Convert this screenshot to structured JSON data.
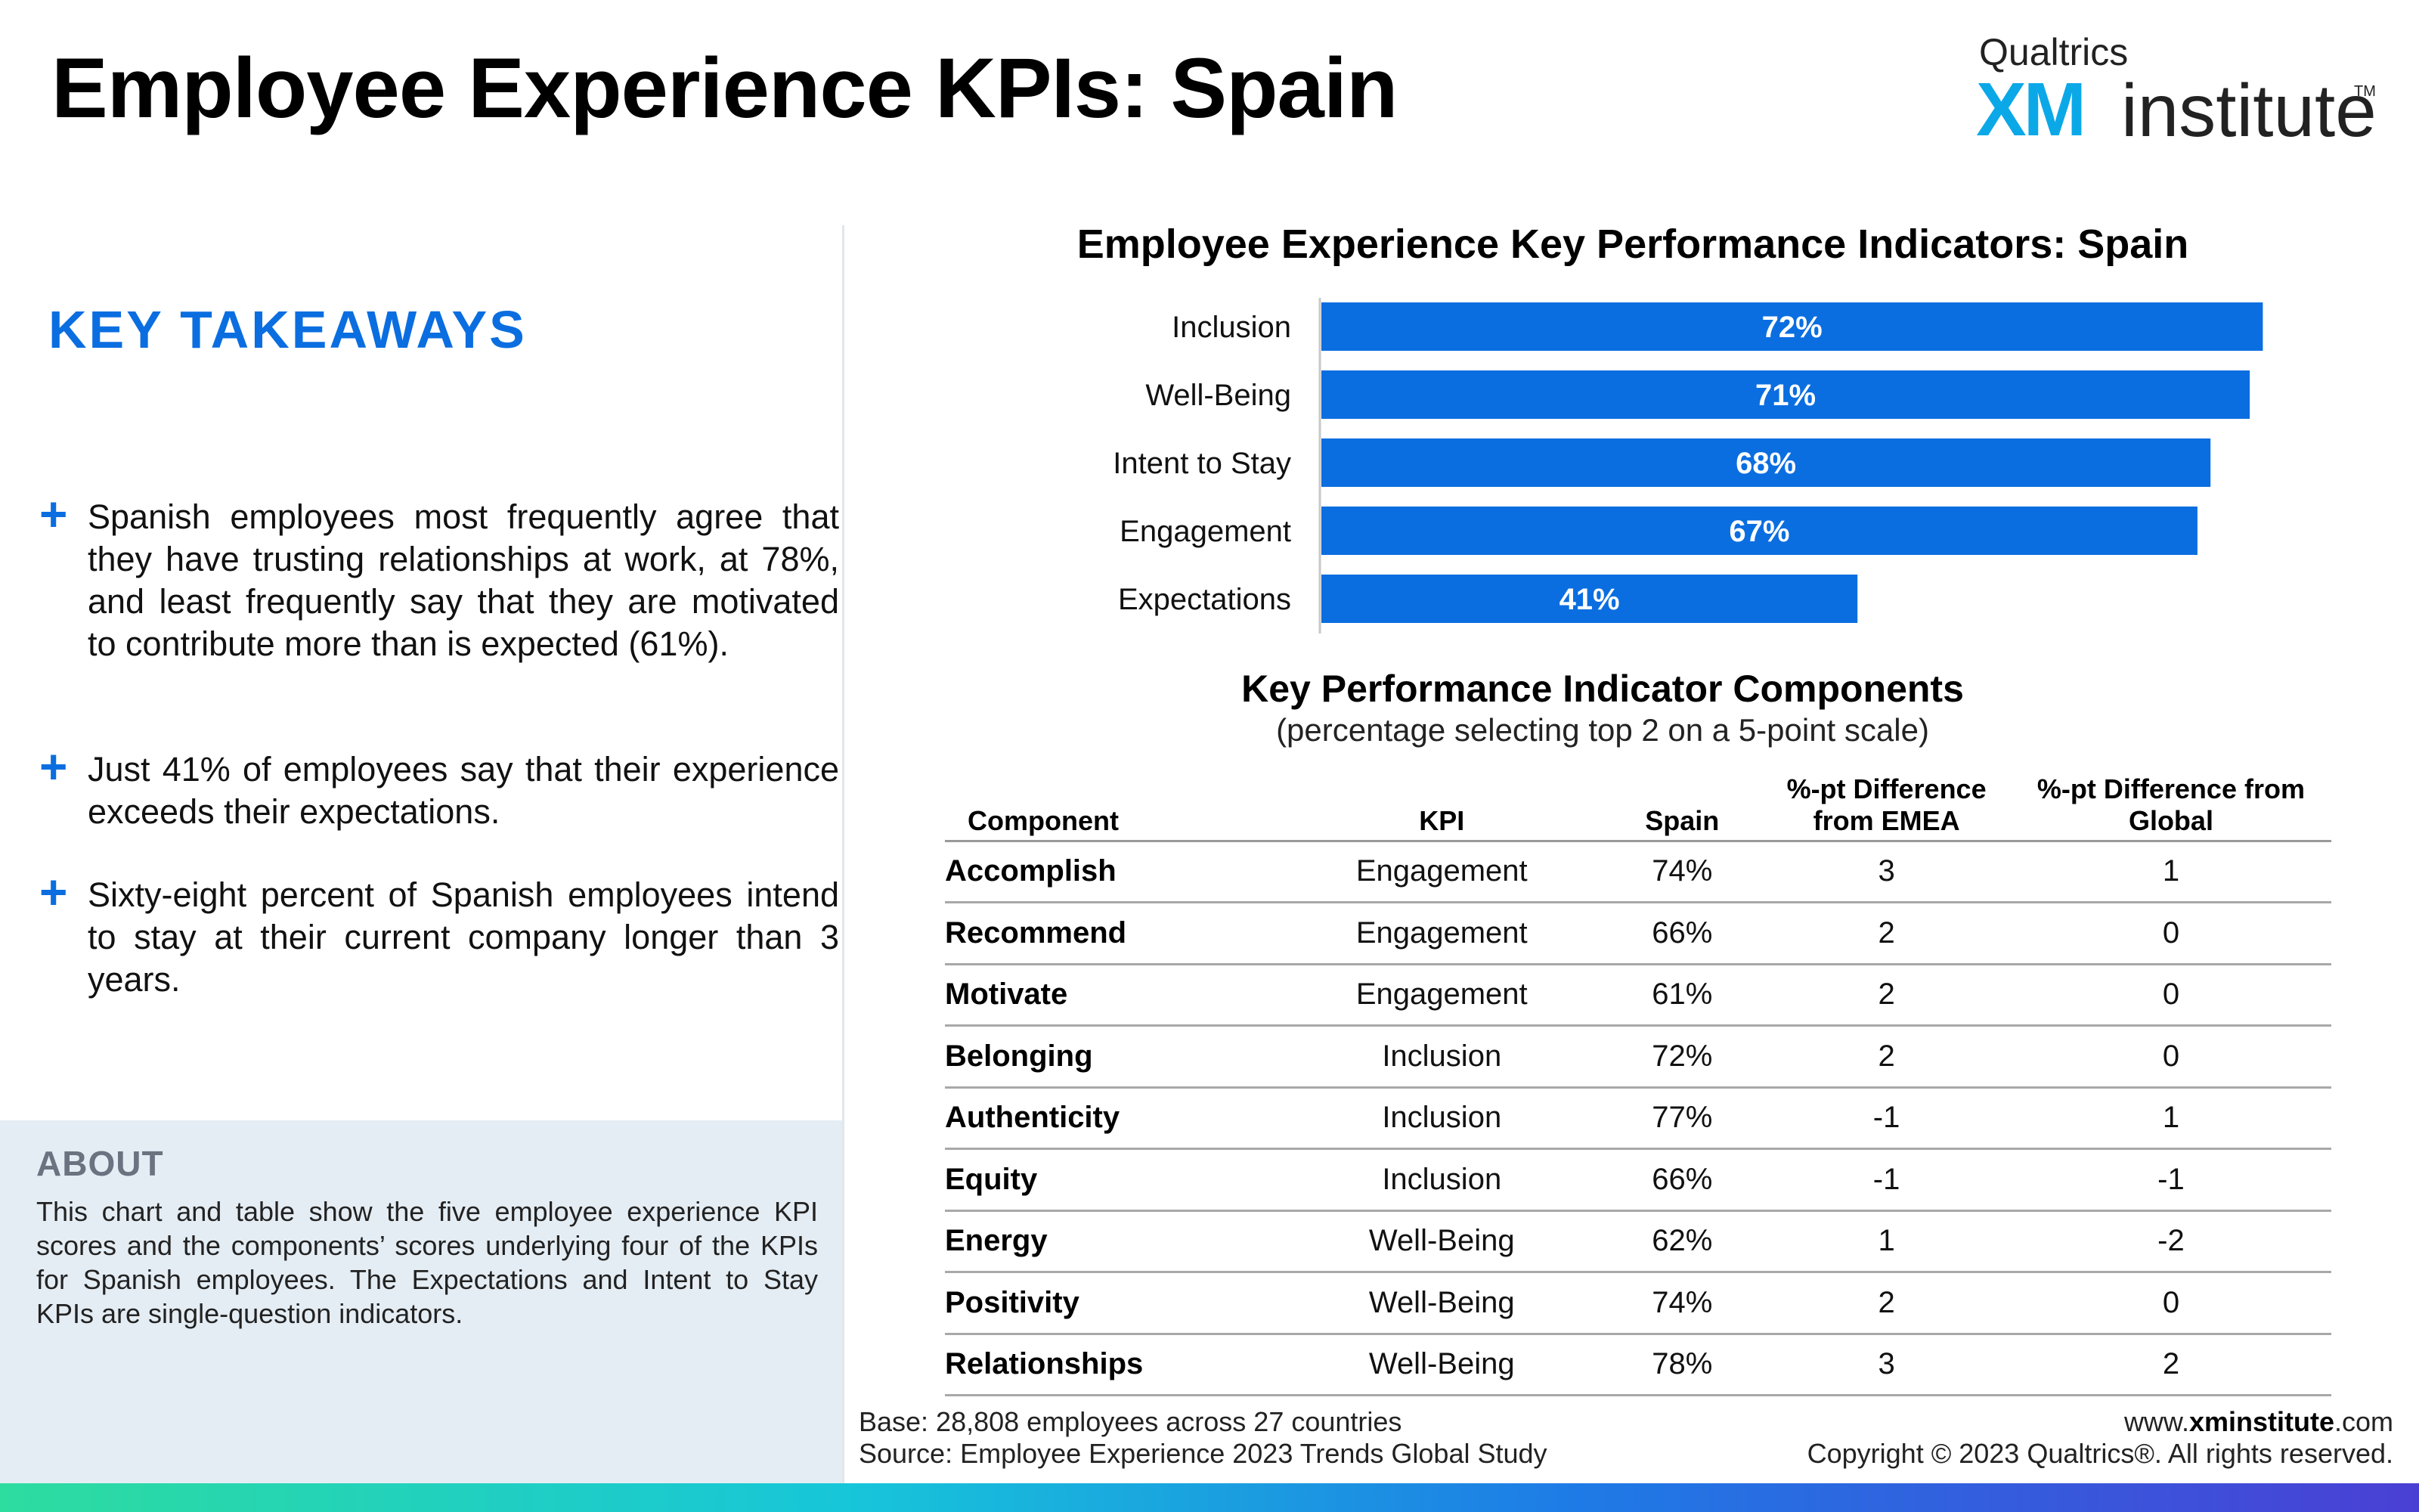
{
  "page": {
    "title": "Employee Experience KPIs: Spain"
  },
  "logo": {
    "brand": "Qualtrics",
    "xm": "XM",
    "institute": "institute",
    "tm": "TM"
  },
  "takeaways": {
    "heading": "KEY TAKEAWAYS",
    "items": [
      {
        "icon": "plus-icon",
        "text": "Spanish employees most frequently agree that they have trusting relationships at work, at 78%, and least frequently say that they are motivated to contribute more than is expected (61%)."
      },
      {
        "icon": "plus-icon",
        "text": "Just 41% of employees say that their experience exceeds their expectations."
      },
      {
        "icon": "plus-icon",
        "text": "Sixty-eight percent of Spanish employees intend to stay at their current company longer than 3 years."
      }
    ]
  },
  "about": {
    "heading": "ABOUT",
    "text": "This chart and table show the five employee experience KPI scores and the components’ scores underlying four of the KPIs for Spanish employees. The Expectations and Intent to Stay KPIs are single-question indicators."
  },
  "chart_data": {
    "type": "bar",
    "orientation": "horizontal",
    "title": "Employee Experience Key Performance Indicators: Spain",
    "categories": [
      "Inclusion",
      "Well-Being",
      "Intent to Stay",
      "Engagement",
      "Expectations"
    ],
    "values": [
      72,
      71,
      68,
      67,
      41
    ],
    "value_labels": [
      "72%",
      "71%",
      "68%",
      "67%",
      "41%"
    ],
    "xlim": [
      0,
      74
    ],
    "grid": false,
    "bar_color": "#0b6ee0",
    "label_color": "#ffffff"
  },
  "table": {
    "title": "Key Performance Indicator Components",
    "subtitle": "(percentage selecting top 2 on a 5-point scale)",
    "headers": {
      "component": "Component",
      "kpi": "KPI",
      "spain": "Spain",
      "emea": [
        "%-pt Difference",
        "from EMEA"
      ],
      "global": [
        "%-pt Difference from",
        "Global"
      ]
    },
    "rows": [
      {
        "component": "Accomplish",
        "kpi": "Engagement",
        "spain": "74%",
        "emea": "3",
        "global": "1"
      },
      {
        "component": "Recommend",
        "kpi": "Engagement",
        "spain": "66%",
        "emea": "2",
        "global": "0"
      },
      {
        "component": "Motivate",
        "kpi": "Engagement",
        "spain": "61%",
        "emea": "2",
        "global": "0"
      },
      {
        "component": "Belonging",
        "kpi": "Inclusion",
        "spain": "72%",
        "emea": "2",
        "global": "0"
      },
      {
        "component": "Authenticity",
        "kpi": "Inclusion",
        "spain": "77%",
        "emea": "-1",
        "global": "1"
      },
      {
        "component": "Equity",
        "kpi": "Inclusion",
        "spain": "66%",
        "emea": "-1",
        "global": "-1"
      },
      {
        "component": "Energy",
        "kpi": "Well-Being",
        "spain": "62%",
        "emea": "1",
        "global": "-2"
      },
      {
        "component": "Positivity",
        "kpi": "Well-Being",
        "spain": "74%",
        "emea": "2",
        "global": "0"
      },
      {
        "component": "Relationships",
        "kpi": "Well-Being",
        "spain": "78%",
        "emea": "3",
        "global": "2"
      }
    ]
  },
  "footer": {
    "base": "Base: 28,808 employees across 27 countries",
    "source": "Source: Employee Experience 2023 Trends Global Study",
    "url_prefix": "www.",
    "url_bold": "xminstitute",
    "url_suffix": ".com",
    "copyright": "Copyright © 2023 Qualtrics®. All rights reserved."
  }
}
